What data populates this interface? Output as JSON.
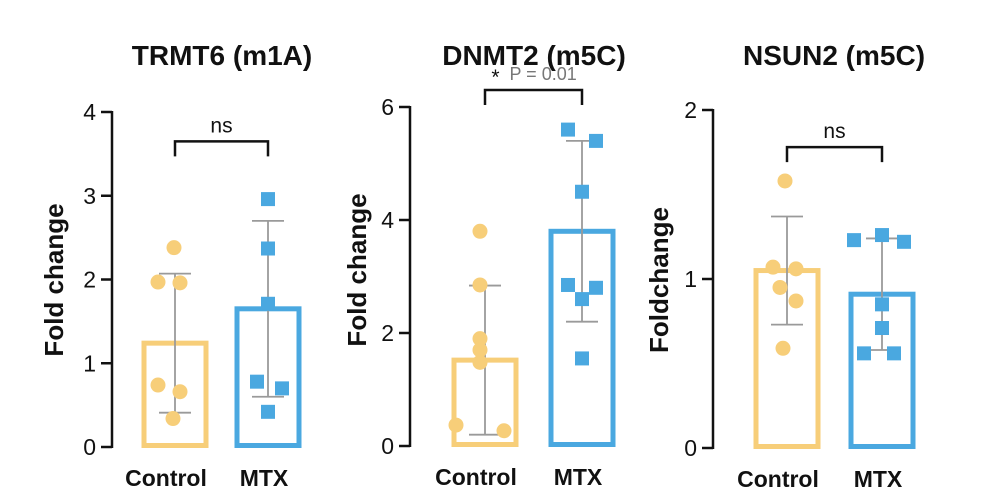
{
  "chart_data": [
    {
      "type": "bar",
      "title": "TRMT6 (m1A)",
      "ylabel": "Fold change",
      "ylim": [
        0,
        4
      ],
      "yticks": [
        "0",
        "1",
        "2",
        "3",
        "4"
      ],
      "categories": [
        "Control",
        "MTX"
      ],
      "means": [
        1.24,
        1.65
      ],
      "sd": [
        0.83,
        1.05
      ],
      "points": [
        [
          2.38,
          1.97,
          1.96,
          0.74,
          0.66,
          0.34
        ],
        [
          2.96,
          2.37,
          1.71,
          0.78,
          0.7,
          0.42
        ]
      ],
      "significance": {
        "label": "ns",
        "p_label": "",
        "height": 3.65
      },
      "colors": [
        "#F7CE79",
        "#4AA8E0"
      ]
    },
    {
      "type": "bar",
      "title": "DNMT2 (m5C)",
      "ylabel": "Fold change",
      "ylim": [
        0,
        6
      ],
      "yticks": [
        "0",
        "2",
        "4",
        "6"
      ],
      "categories": [
        "Control",
        "MTX"
      ],
      "means": [
        1.52,
        3.8
      ],
      "sd": [
        1.32,
        1.6
      ],
      "points": [
        [
          3.8,
          2.85,
          1.9,
          1.7,
          1.48,
          0.37,
          0.27
        ],
        [
          5.6,
          5.4,
          4.5,
          2.85,
          2.8,
          2.6,
          1.55
        ]
      ],
      "significance": {
        "label": "*",
        "p_label": "P = 0.01",
        "height": 6.3
      },
      "colors": [
        "#F7CE79",
        "#4AA8E0"
      ]
    },
    {
      "type": "bar",
      "title": "NSUN2 (m5C)",
      "ylabel": "Foldchange",
      "ylim": [
        0,
        2
      ],
      "yticks": [
        "0",
        "1",
        "2"
      ],
      "categories": [
        "Control",
        "MTX"
      ],
      "means": [
        1.05,
        0.91
      ],
      "sd": [
        0.32,
        0.33
      ],
      "points": [
        [
          1.58,
          1.07,
          1.06,
          0.95,
          0.87,
          0.59
        ],
        [
          1.26,
          1.23,
          1.22,
          0.85,
          0.71,
          0.56,
          0.56
        ]
      ],
      "significance": {
        "label": "ns",
        "p_label": "",
        "height": 1.78
      },
      "colors": [
        "#F7CE79",
        "#4AA8E0"
      ]
    }
  ]
}
